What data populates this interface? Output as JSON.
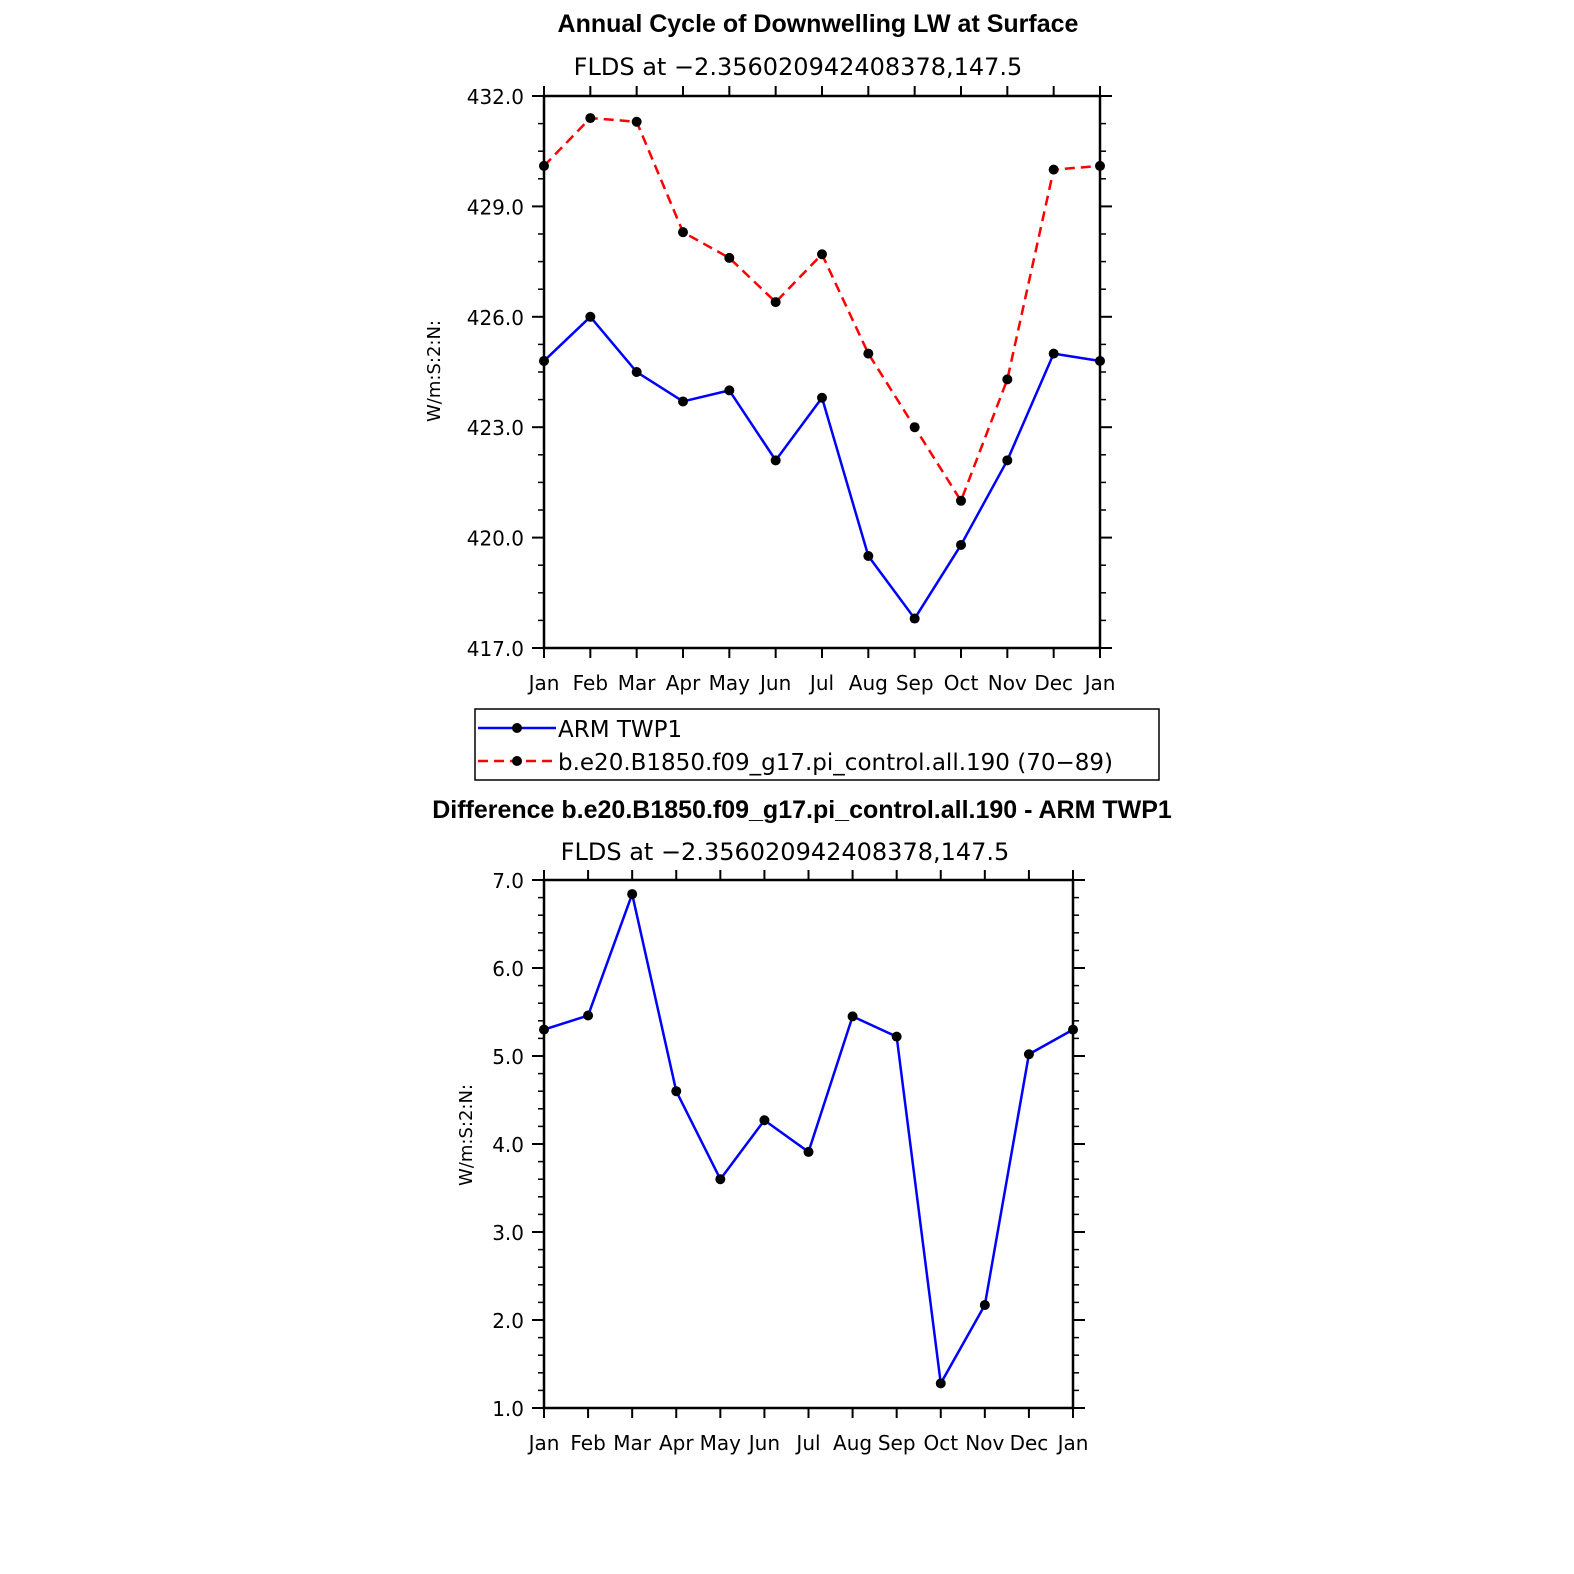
{
  "chart_data": [
    {
      "type": "line",
      "title": "Annual Cycle of Downwelling LW at Surface",
      "subtitle": "FLDS at −2.356020942408378,147.5",
      "xlabel": "",
      "ylabel": "W/m:S:2:N:",
      "categories": [
        "Jan",
        "Feb",
        "Mar",
        "Apr",
        "May",
        "Jun",
        "Jul",
        "Aug",
        "Sep",
        "Oct",
        "Nov",
        "Dec",
        "Jan"
      ],
      "ylim": [
        417.0,
        432.0
      ],
      "yticks": [
        "417.0",
        "420.0",
        "423.0",
        "426.0",
        "429.0",
        "432.0"
      ],
      "series": [
        {
          "name": "ARM TWP1",
          "color": "#0000ff",
          "dash": "solid",
          "values": [
            424.8,
            426.0,
            424.5,
            423.7,
            424.0,
            422.1,
            423.8,
            419.5,
            417.8,
            419.8,
            422.1,
            425.0,
            424.8
          ]
        },
        {
          "name": "b.e20.B1850.f09_g17.pi_control.all.190 (70−89)",
          "color": "#ff0000",
          "dash": "dashed",
          "values": [
            430.1,
            431.4,
            431.3,
            428.3,
            427.6,
            426.4,
            427.7,
            425.0,
            423.0,
            421.0,
            424.3,
            430.0,
            430.1
          ]
        }
      ],
      "grid": false,
      "legend_position": "below"
    },
    {
      "type": "line",
      "title": "Difference b.e20.B1850.f09_g17.pi_control.all.190 - ARM TWP1",
      "subtitle": "FLDS at −2.356020942408378,147.5",
      "xlabel": "",
      "ylabel": "W/m:S:2:N:",
      "categories": [
        "Jan",
        "Feb",
        "Mar",
        "Apr",
        "May",
        "Jun",
        "Jul",
        "Aug",
        "Sep",
        "Oct",
        "Nov",
        "Dec",
        "Jan"
      ],
      "ylim": [
        1.0,
        7.0
      ],
      "yticks": [
        "1.0",
        "2.0",
        "3.0",
        "4.0",
        "5.0",
        "6.0",
        "7.0"
      ],
      "series": [
        {
          "color": "#0000ff",
          "dash": "solid",
          "values": [
            5.3,
            5.46,
            6.84,
            4.6,
            3.6,
            4.27,
            3.91,
            5.45,
            5.22,
            1.28,
            2.17,
            5.02,
            5.3
          ]
        }
      ],
      "grid": false
    }
  ]
}
